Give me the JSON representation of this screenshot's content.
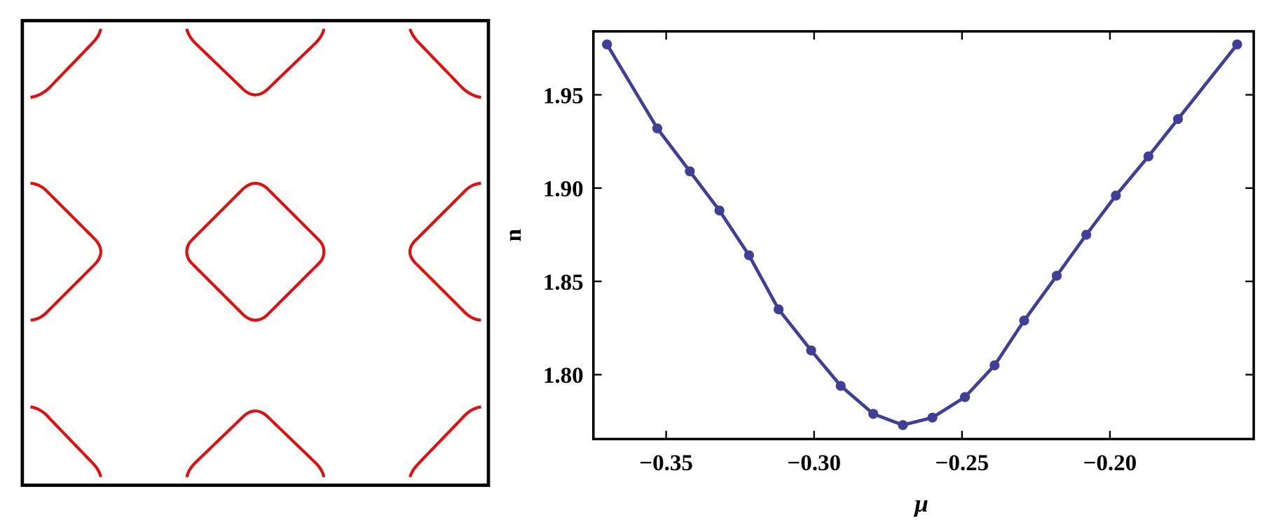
{
  "chart_data": {
    "type": "line",
    "xlabel": "μ",
    "ylabel": "n",
    "color": "#3f3f97",
    "x": [
      -0.37,
      -0.353,
      -0.342,
      -0.332,
      -0.322,
      -0.312,
      -0.301,
      -0.291,
      -0.28,
      -0.27,
      -0.26,
      -0.249,
      -0.239,
      -0.229,
      -0.218,
      -0.208,
      -0.198,
      -0.187,
      -0.177,
      -0.157
    ],
    "values": [
      1.977,
      1.932,
      1.909,
      1.888,
      1.864,
      1.835,
      1.813,
      1.794,
      1.779,
      1.773,
      1.777,
      1.788,
      1.805,
      1.829,
      1.853,
      1.875,
      1.896,
      1.917,
      1.937,
      1.977
    ],
    "xlim": [
      -0.3746,
      -0.1514
    ],
    "ylim": [
      1.7655,
      1.984
    ],
    "xticks": [
      {
        "value": -0.35,
        "label": "−0.35"
      },
      {
        "value": -0.3,
        "label": "−0.30"
      },
      {
        "value": -0.25,
        "label": "−0.25"
      },
      {
        "value": -0.2,
        "label": "−0.20"
      }
    ],
    "yticks": [
      {
        "value": 1.8,
        "label": "1.80"
      },
      1.85,
      {
        "value": 1.9,
        "label": "1.90"
      },
      1.95
    ]
  }
}
